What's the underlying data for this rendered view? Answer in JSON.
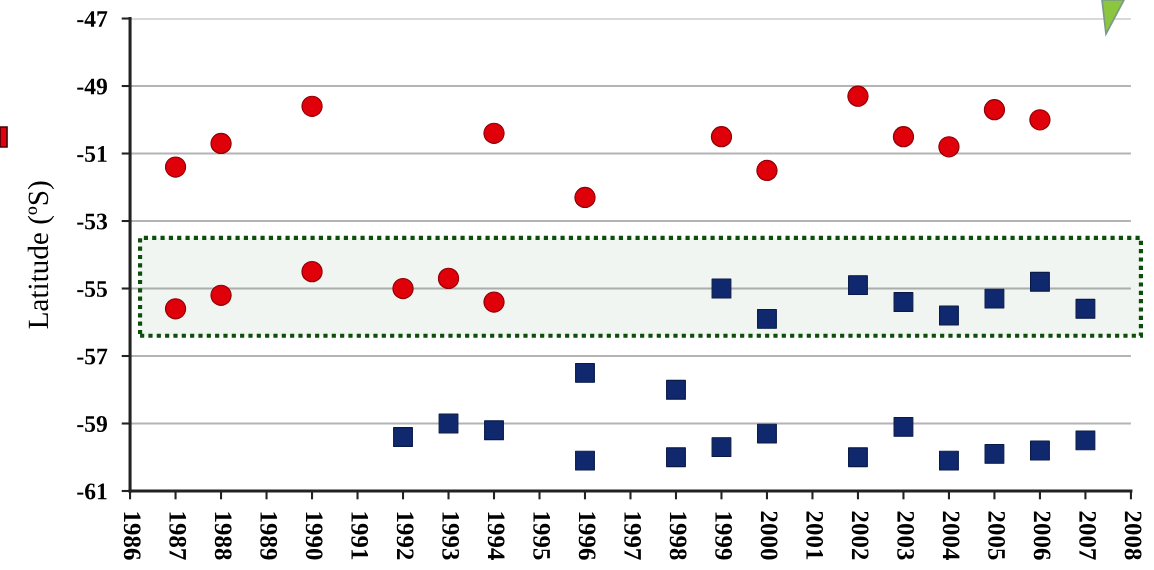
{
  "chart_data": {
    "type": "scatter",
    "ylabel": "Latitude (ºS)",
    "series": [
      {
        "color": "#e0000a",
        "marker": "circle",
        "x": [
          1987,
          1987,
          1988,
          1988,
          1990,
          1990,
          1992,
          1993,
          1994,
          1994,
          1996,
          1999,
          2000,
          2002,
          2003,
          2004,
          2005,
          2006
        ],
        "values": [
          -51.4,
          -55.6,
          -50.7,
          -55.2,
          -49.6,
          -54.5,
          -55.0,
          -54.7,
          -50.4,
          -55.4,
          -52.3,
          -50.5,
          -51.5,
          -49.3,
          -50.5,
          -50.8,
          -49.7,
          -50.0
        ]
      },
      {
        "color": "#10296e",
        "marker": "square",
        "x": [
          1992,
          1993,
          1994,
          1996,
          1996,
          1998,
          1998,
          1999,
          1999,
          2000,
          2000,
          2002,
          2002,
          2003,
          2003,
          2004,
          2004,
          2005,
          2005,
          2006,
          2006,
          2007,
          2007
        ],
        "values": [
          -59.4,
          -59.0,
          -59.2,
          -57.5,
          -60.1,
          -58.0,
          -60.0,
          -55.0,
          -59.7,
          -55.9,
          -59.3,
          -54.9,
          -60.0,
          -55.4,
          -59.1,
          -55.8,
          -60.1,
          -55.3,
          -59.9,
          -54.8,
          -59.8,
          -55.6,
          -59.5
        ]
      }
    ],
    "xlim": [
      1986,
      2008
    ],
    "xticks": [
      1986,
      1987,
      1988,
      1989,
      1990,
      1991,
      1992,
      1993,
      1994,
      1995,
      1996,
      1997,
      1998,
      1999,
      2000,
      2001,
      2002,
      2003,
      2004,
      2005,
      2006,
      2007,
      2008
    ],
    "ylim": [
      -61,
      -47
    ],
    "yticks": [
      -61,
      -59,
      -57,
      -55,
      -53,
      -51,
      -49,
      -47
    ],
    "grid": "y",
    "bands": [
      {
        "axis": "y",
        "from": -56.4,
        "to": -53.5,
        "color": "#0b4f0b"
      }
    ]
  }
}
